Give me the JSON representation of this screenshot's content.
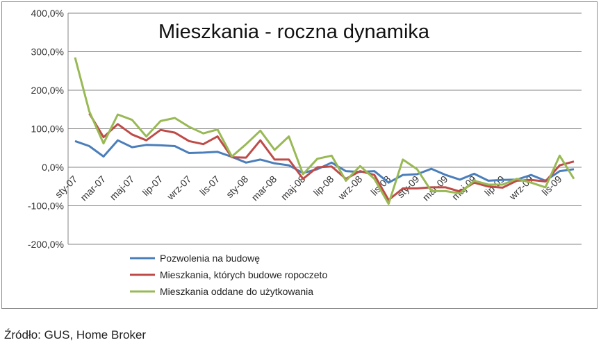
{
  "chart_data": {
    "type": "line",
    "title": "Mieszkania - roczna dynamika",
    "xlabel": "",
    "ylabel": "",
    "ylim": [
      -200,
      400
    ],
    "y_ticks": [
      "400,0%",
      "300,0%",
      "200,0%",
      "100,0%",
      "0,0%",
      "-100,0%",
      "-200,0%"
    ],
    "y_tick_values": [
      400,
      300,
      200,
      100,
      0,
      -100,
      -200
    ],
    "x_tick_labels": [
      "sty-07",
      "mar-07",
      "maj-07",
      "lip-07",
      "wrz-07",
      "lis-07",
      "sty-08",
      "mar-08",
      "maj-08",
      "lip-08",
      "wrz-08",
      "lis-08",
      "sty-09",
      "mar-09",
      "maj-09",
      "lip-09",
      "wrz-09",
      "lis-09"
    ],
    "categories": [
      "sty-07",
      "lut-07",
      "mar-07",
      "kwi-07",
      "maj-07",
      "cze-07",
      "lip-07",
      "sie-07",
      "wrz-07",
      "paź-07",
      "lis-07",
      "gru-07",
      "sty-08",
      "lut-08",
      "mar-08",
      "kwi-08",
      "maj-08",
      "cze-08",
      "lip-08",
      "sie-08",
      "wrz-08",
      "paź-08",
      "lis-08",
      "gru-08",
      "sty-09",
      "lut-09",
      "mar-09",
      "kwi-09",
      "maj-09",
      "cze-09",
      "lip-09",
      "sie-09",
      "wrz-09",
      "paź-09",
      "lis-09",
      "gru-09"
    ],
    "grid": true,
    "legend_position": "bottom",
    "series": [
      {
        "name": "Pozwolenia na budowę",
        "color": "#4a7ebb",
        "values": [
          68,
          55,
          28,
          70,
          52,
          58,
          57,
          55,
          37,
          38,
          40,
          27,
          12,
          20,
          10,
          5,
          -15,
          -5,
          12,
          -10,
          -12,
          -10,
          -40,
          -20,
          -18,
          -4,
          -20,
          -32,
          -17,
          -35,
          -33,
          -32,
          -20,
          -35,
          -10,
          -5
        ]
      },
      {
        "name": "Mieszkania, których budowe ropoczeto",
        "color": "#be4b48",
        "values": [
          null,
          140,
          78,
          112,
          85,
          70,
          97,
          90,
          68,
          60,
          80,
          26,
          25,
          70,
          20,
          20,
          -30,
          0,
          2,
          -30,
          -10,
          -20,
          -85,
          -55,
          -55,
          -52,
          -52,
          -63,
          -40,
          -50,
          -53,
          -35,
          -33,
          -37,
          5,
          15
        ]
      },
      {
        "name": "Mieszkania oddane do użytkowania",
        "color": "#98b954",
        "values": [
          285,
          145,
          62,
          137,
          123,
          80,
          120,
          128,
          105,
          88,
          98,
          28,
          60,
          95,
          45,
          80,
          -18,
          22,
          30,
          -35,
          3,
          -30,
          -95,
          20,
          -5,
          -62,
          -62,
          -68,
          -35,
          -45,
          -45,
          -30,
          -40,
          -52,
          30,
          -30
        ]
      }
    ]
  },
  "source_note": "Źródło: GUS, Home Broker"
}
